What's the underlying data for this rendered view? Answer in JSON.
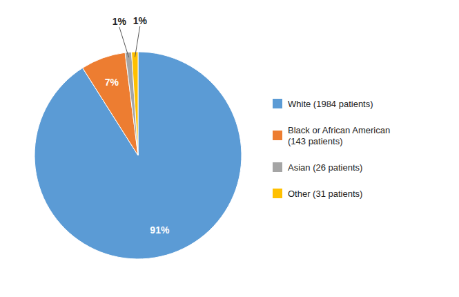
{
  "chart_data": {
    "type": "pie",
    "categories": [
      "White (1984 patients)",
      "Black or African American\n(143 patients)",
      "Asian (26 patients)",
      "Other (31 patients)"
    ],
    "values": [
      91,
      7,
      1,
      1
    ],
    "value_labels": [
      "91%",
      "7%",
      "1%",
      "1%"
    ],
    "colors": [
      "#5B9BD5",
      "#ED7D31",
      "#A5A5A5",
      "#FFC000"
    ],
    "data_labels": true,
    "legend": "right"
  }
}
